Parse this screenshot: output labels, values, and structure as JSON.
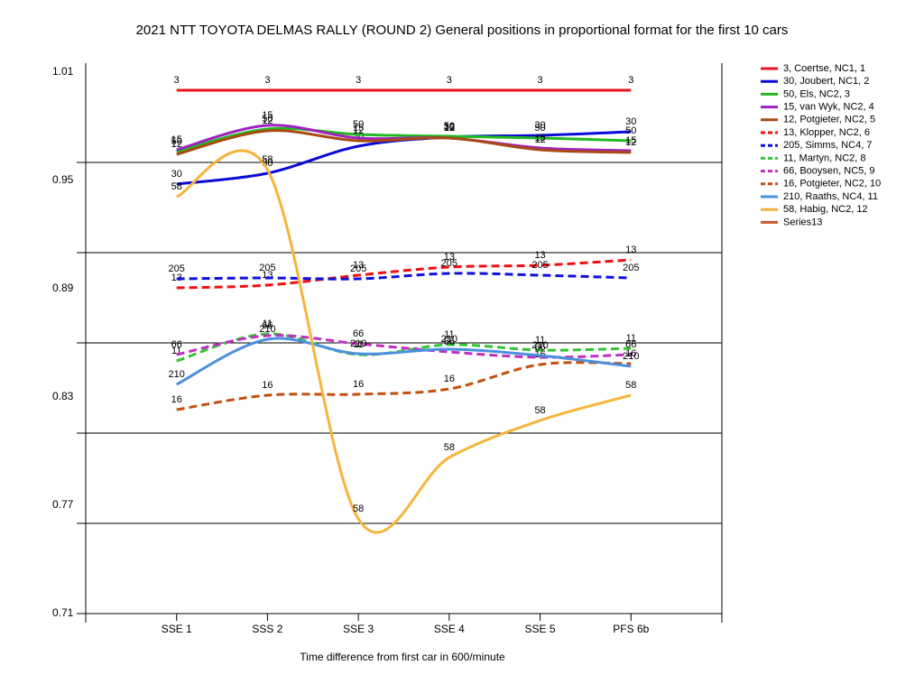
{
  "chart_data": {
    "type": "line",
    "title": "2021 NTT TOYOTA DELMAS RALLY (ROUND 2)  General positions in proportional format for the first 10 cars",
    "x_label": "Time difference from first car in 600/minute",
    "categories": [
      "SSE 1",
      "SSS 2",
      "SSE 3",
      "SSE 4",
      "SSE 5",
      "PFS 6b"
    ],
    "ylim": [
      0.71,
      1.01
    ],
    "yticks": [
      1.01,
      0.95,
      0.89,
      0.83,
      0.77,
      0.71
    ],
    "ygrid": [
      0.96,
      0.91,
      0.86,
      0.81,
      0.76,
      0.71
    ],
    "grid": true,
    "legend": "right",
    "series": [
      {
        "name": "3, Coertse, NC1, 1",
        "point_label": "3",
        "color": "#e8141c",
        "dashed": false,
        "values": [
          1.0,
          1.0,
          1.0,
          1.0,
          1.0,
          1.0
        ]
      },
      {
        "name": "30, Joubert, NC1, 2",
        "point_label": "30",
        "color": "#0a0ad8",
        "dashed": false,
        "values": [
          0.948,
          0.954,
          0.969,
          0.974,
          0.975,
          0.977
        ]
      },
      {
        "name": "50, Els, NC2, 3",
        "point_label": "50",
        "color": "#22b922",
        "dashed": false,
        "values": [
          0.966,
          0.9785,
          0.9755,
          0.9745,
          0.9735,
          0.972
        ]
      },
      {
        "name": "15, van Wyk, NC2, 4",
        "point_label": "15",
        "color": "#a020c0",
        "dashed": false,
        "values": [
          0.967,
          0.9805,
          0.9735,
          0.9735,
          0.968,
          0.9665
        ]
      },
      {
        "name": "12, Potgieter, NC2, 5",
        "point_label": "12",
        "color": "#a84a14",
        "dashed": false,
        "values": [
          0.9645,
          0.9775,
          0.972,
          0.9735,
          0.967,
          0.9655
        ]
      },
      {
        "name": "13, Klopper, NC2, 6",
        "point_label": "13",
        "color": "#ee1111",
        "dashed": true,
        "values": [
          0.8905,
          0.892,
          0.8975,
          0.902,
          0.903,
          0.906
        ]
      },
      {
        "name": "205, Simms, NC4, 7",
        "point_label": "205",
        "color": "#1010dd",
        "dashed": true,
        "values": [
          0.8955,
          0.896,
          0.8955,
          0.8985,
          0.8975,
          0.896
        ]
      },
      {
        "name": "11, Martyn, NC2, 8",
        "point_label": "11",
        "color": "#33c433",
        "dashed": true,
        "values": [
          0.85,
          0.865,
          0.8535,
          0.859,
          0.856,
          0.857
        ]
      },
      {
        "name": "66, Booysen, NC5, 9",
        "point_label": "66",
        "color": "#c030c0",
        "dashed": true,
        "values": [
          0.8535,
          0.864,
          0.8595,
          0.855,
          0.852,
          0.8535
        ]
      },
      {
        "name": "16, Potgieter, NC2, 10",
        "point_label": "16",
        "color": "#c05010",
        "dashed": true,
        "values": [
          0.823,
          0.831,
          0.8315,
          0.8345,
          0.848,
          0.8485
        ]
      },
      {
        "name": "210, Raaths, NC4, 11",
        "point_label": "210",
        "color": "#4a90e0",
        "dashed": false,
        "values": [
          0.837,
          0.862,
          0.854,
          0.8565,
          0.853,
          0.847
        ]
      },
      {
        "name": "58, Habig, NC2, 12",
        "point_label": "58",
        "color": "#f7b43c",
        "dashed": false,
        "values": [
          0.941,
          0.956,
          0.7625,
          0.7965,
          0.817,
          0.831
        ]
      },
      {
        "name": "Series13",
        "color": "#c85a28",
        "dashed": false,
        "values": [
          null,
          null,
          null,
          null,
          null,
          null
        ]
      }
    ]
  }
}
